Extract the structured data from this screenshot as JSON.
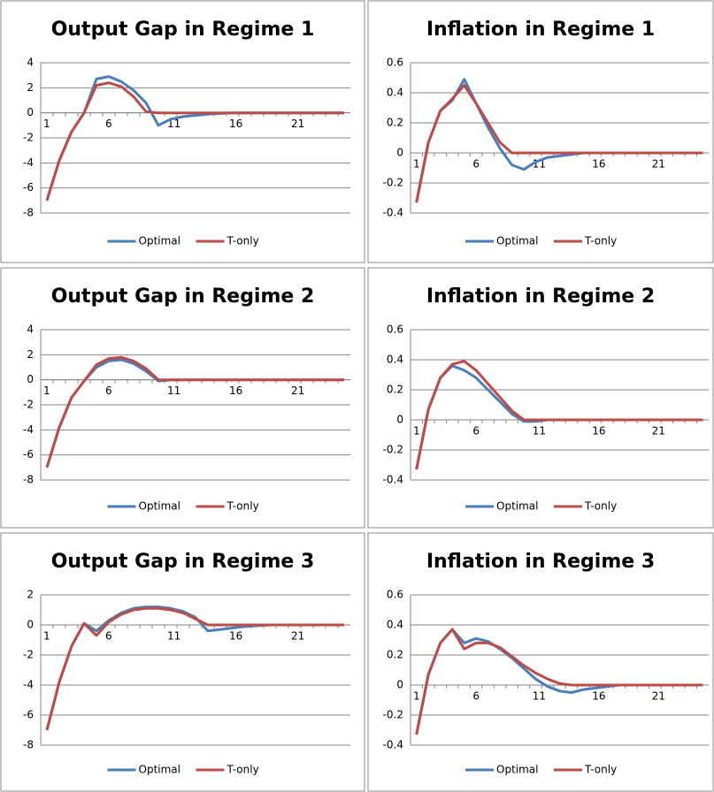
{
  "chart_data": [
    {
      "type": "line",
      "title": "Output Gap in Regime 1",
      "categories": [
        1,
        null,
        null,
        null,
        null,
        6,
        null,
        null,
        null,
        null,
        11,
        null,
        null,
        null,
        null,
        16,
        null,
        null,
        null,
        null,
        21,
        null,
        null,
        null,
        null
      ],
      "series": [
        {
          "name": "Optimal",
          "color": "#4a7ebb",
          "values": [
            -7,
            -3.8,
            -1.5,
            0,
            2.7,
            2.9,
            2.5,
            1.8,
            0.8,
            -1.0,
            -0.5,
            -0.3,
            -0.2,
            -0.1,
            -0.05,
            0,
            0,
            0,
            0,
            0,
            0,
            0,
            0,
            0,
            0
          ]
        },
        {
          "name": "T-only",
          "color": "#be4b48",
          "values": [
            -7,
            -3.8,
            -1.5,
            0,
            2.2,
            2.4,
            2.1,
            1.3,
            0.1,
            0,
            0,
            0,
            0,
            0,
            0,
            0,
            0,
            0,
            0,
            0,
            0,
            0,
            0,
            0,
            0
          ]
        }
      ],
      "ylim": [
        -8,
        4
      ],
      "yticks": [
        -8,
        -6,
        -4,
        -2,
        0,
        2,
        4
      ],
      "grid": true,
      "legend": "bottom"
    },
    {
      "type": "line",
      "title": "Inflation in Regime 1",
      "categories": [
        1,
        null,
        null,
        null,
        null,
        6,
        null,
        null,
        null,
        null,
        11,
        null,
        null,
        null,
        null,
        16,
        null,
        null,
        null,
        null,
        21,
        null,
        null,
        null,
        null
      ],
      "series": [
        {
          "name": "Optimal",
          "color": "#4a7ebb",
          "values": [
            -0.33,
            0.07,
            0.28,
            0.35,
            0.49,
            0.33,
            0.17,
            0.03,
            -0.08,
            -0.11,
            -0.06,
            -0.03,
            -0.02,
            -0.01,
            0,
            0,
            0,
            0,
            0,
            0,
            0,
            0,
            0,
            0,
            0
          ]
        },
        {
          "name": "T-only",
          "color": "#be4b48",
          "values": [
            -0.33,
            0.07,
            0.28,
            0.36,
            0.45,
            0.33,
            0.2,
            0.07,
            0,
            0,
            0,
            0,
            0,
            0,
            0,
            0,
            0,
            0,
            0,
            0,
            0,
            0,
            0,
            0,
            0
          ]
        }
      ],
      "ylim": [
        -0.4,
        0.6
      ],
      "yticks": [
        -0.4,
        -0.2,
        0,
        0.2,
        0.4,
        0.6
      ],
      "grid": true,
      "legend": "bottom"
    },
    {
      "type": "line",
      "title": "Output Gap in Regime 2",
      "categories": [
        1,
        null,
        null,
        null,
        null,
        6,
        null,
        null,
        null,
        null,
        11,
        null,
        null,
        null,
        null,
        16,
        null,
        null,
        null,
        null,
        21,
        null,
        null,
        null,
        null
      ],
      "series": [
        {
          "name": "Optimal",
          "color": "#4a7ebb",
          "values": [
            -7,
            -3.8,
            -1.4,
            -0.1,
            1.0,
            1.5,
            1.6,
            1.3,
            0.7,
            -0.1,
            0,
            0,
            0,
            0,
            0,
            0,
            0,
            0,
            0,
            0,
            0,
            0,
            0,
            0,
            0
          ]
        },
        {
          "name": "T-only",
          "color": "#be4b48",
          "values": [
            -7,
            -3.8,
            -1.4,
            -0.1,
            1.2,
            1.7,
            1.8,
            1.5,
            0.9,
            0,
            0,
            0,
            0,
            0,
            0,
            0,
            0,
            0,
            0,
            0,
            0,
            0,
            0,
            0,
            0
          ]
        }
      ],
      "ylim": [
        -8,
        4
      ],
      "yticks": [
        -8,
        -6,
        -4,
        -2,
        0,
        2,
        4
      ],
      "grid": true,
      "legend": "bottom"
    },
    {
      "type": "line",
      "title": "Inflation in Regime 2",
      "categories": [
        1,
        null,
        null,
        null,
        null,
        6,
        null,
        null,
        null,
        null,
        11,
        null,
        null,
        null,
        null,
        16,
        null,
        null,
        null,
        null,
        21,
        null,
        null,
        null,
        null
      ],
      "series": [
        {
          "name": "Optimal",
          "color": "#4a7ebb",
          "values": [
            -0.33,
            0.07,
            0.28,
            0.36,
            0.33,
            0.28,
            0.2,
            0.12,
            0.04,
            -0.01,
            -0.01,
            0,
            0,
            0,
            0,
            0,
            0,
            0,
            0,
            0,
            0,
            0,
            0,
            0,
            0
          ]
        },
        {
          "name": "T-only",
          "color": "#be4b48",
          "values": [
            -0.33,
            0.07,
            0.28,
            0.37,
            0.39,
            0.33,
            0.24,
            0.15,
            0.06,
            0,
            0,
            0,
            0,
            0,
            0,
            0,
            0,
            0,
            0,
            0,
            0,
            0,
            0,
            0,
            0
          ]
        }
      ],
      "ylim": [
        -0.4,
        0.6
      ],
      "yticks": [
        -0.4,
        -0.2,
        0,
        0.2,
        0.4,
        0.6
      ],
      "grid": true,
      "legend": "bottom"
    },
    {
      "type": "line",
      "title": "Output Gap in Regime 3",
      "categories": [
        1,
        null,
        null,
        null,
        null,
        6,
        null,
        null,
        null,
        null,
        11,
        null,
        null,
        null,
        null,
        16,
        null,
        null,
        null,
        null,
        21,
        null,
        null,
        null,
        null
      ],
      "series": [
        {
          "name": "Optimal",
          "color": "#4a7ebb",
          "values": [
            -7,
            -3.8,
            -1.4,
            0.1,
            -0.4,
            0.3,
            0.8,
            1.1,
            1.2,
            1.2,
            1.1,
            0.9,
            0.5,
            -0.4,
            -0.3,
            -0.2,
            -0.1,
            -0.05,
            0,
            0,
            0,
            0,
            0,
            0,
            0
          ]
        },
        {
          "name": "T-only",
          "color": "#be4b48",
          "values": [
            -7,
            -3.8,
            -1.4,
            0.1,
            -0.7,
            0.2,
            0.7,
            1.0,
            1.1,
            1.1,
            1.0,
            0.8,
            0.4,
            0,
            0,
            0,
            0,
            0,
            0,
            0,
            0,
            0,
            0,
            0,
            0
          ]
        }
      ],
      "ylim": [
        -8,
        2
      ],
      "yticks": [
        -8,
        -6,
        -4,
        -2,
        0,
        2
      ],
      "grid": true,
      "legend": "bottom"
    },
    {
      "type": "line",
      "title": "Inflation in Regime 3",
      "categories": [
        1,
        null,
        null,
        null,
        null,
        6,
        null,
        null,
        null,
        null,
        11,
        null,
        null,
        null,
        null,
        16,
        null,
        null,
        null,
        null,
        21,
        null,
        null,
        null,
        null
      ],
      "series": [
        {
          "name": "Optimal",
          "color": "#4a7ebb",
          "values": [
            -0.33,
            0.07,
            0.28,
            0.37,
            0.28,
            0.31,
            0.29,
            0.24,
            0.18,
            0.11,
            0.04,
            -0.01,
            -0.04,
            -0.05,
            -0.03,
            -0.02,
            -0.01,
            0,
            0,
            0,
            0,
            0,
            0,
            0,
            0
          ]
        },
        {
          "name": "T-only",
          "color": "#be4b48",
          "values": [
            -0.33,
            0.07,
            0.28,
            0.37,
            0.24,
            0.28,
            0.28,
            0.25,
            0.19,
            0.13,
            0.08,
            0.04,
            0.01,
            0,
            0,
            0,
            0,
            0,
            0,
            0,
            0,
            0,
            0,
            0,
            0
          ]
        }
      ],
      "ylim": [
        -0.4,
        0.6
      ],
      "yticks": [
        -0.4,
        -0.2,
        0,
        0.2,
        0.4,
        0.6
      ],
      "grid": true,
      "legend": "bottom"
    }
  ]
}
